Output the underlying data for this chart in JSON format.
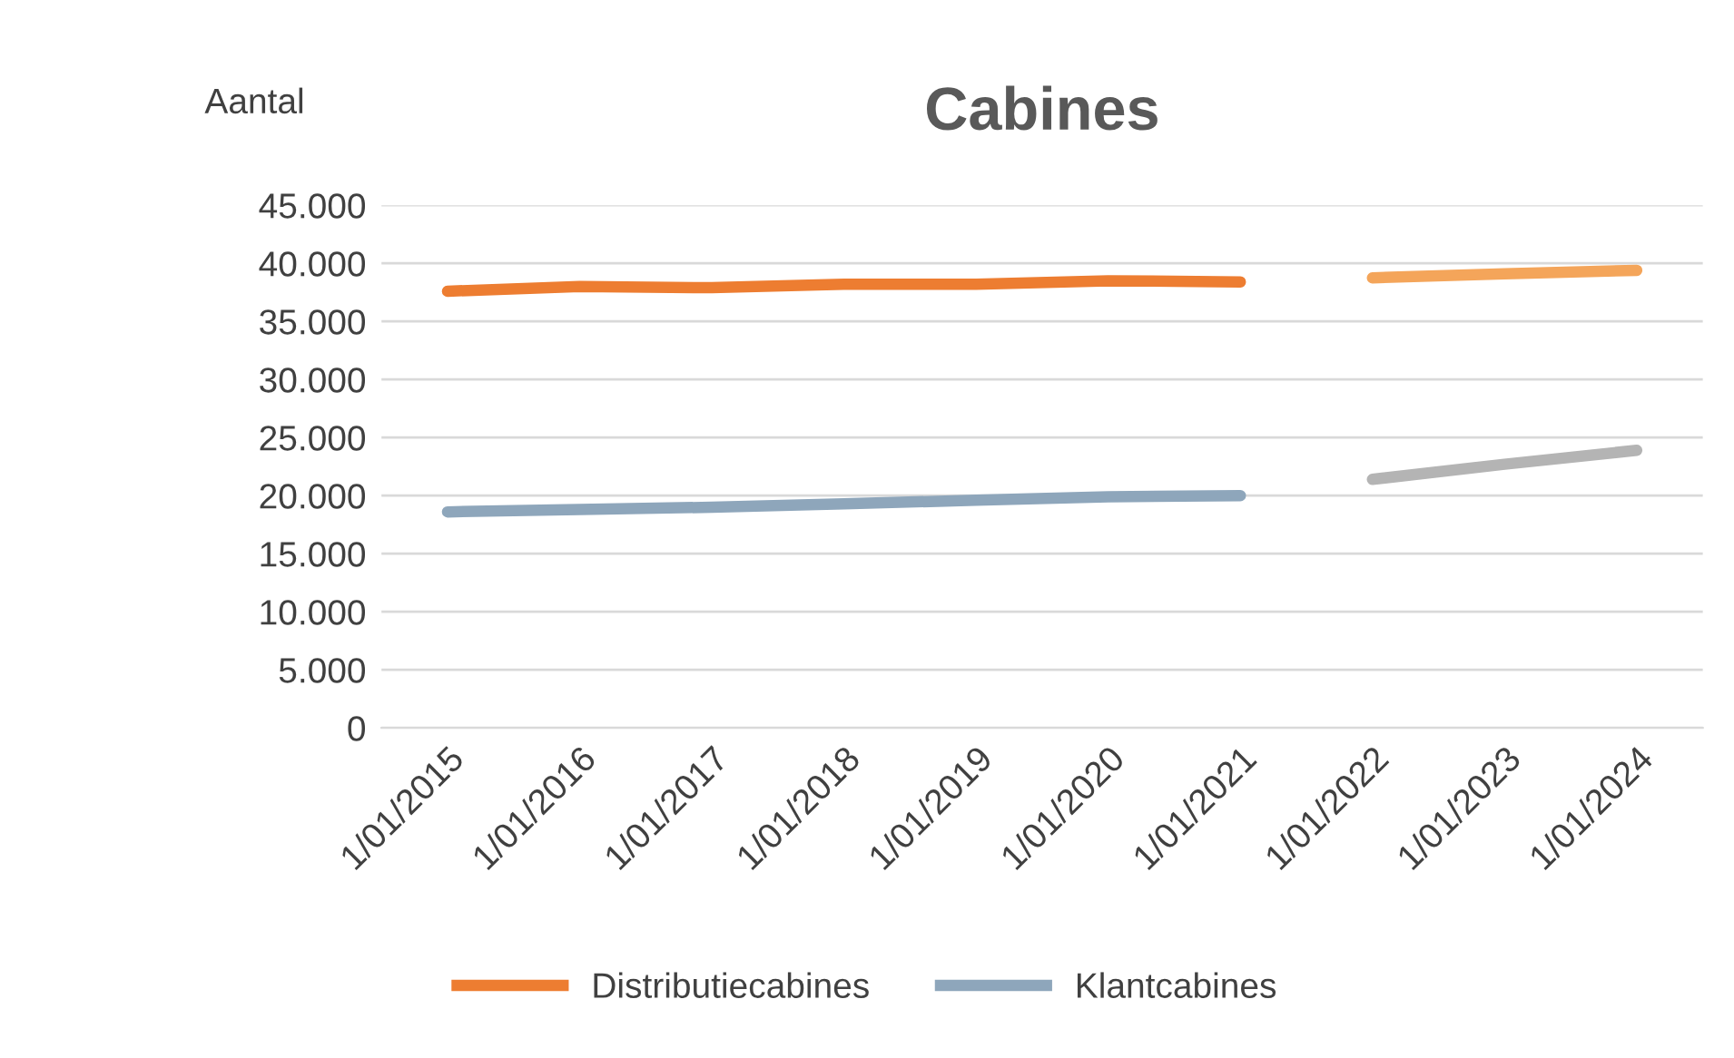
{
  "chart_data": {
    "type": "line",
    "title": "Cabines",
    "ylabel": "Aantal",
    "categories": [
      "1/01/2015",
      "1/01/2016",
      "1/01/2017",
      "1/01/2018",
      "1/01/2019",
      "1/01/2020",
      "1/01/2021",
      "1/01/2022",
      "1/01/2023",
      "1/01/2024"
    ],
    "series": [
      {
        "name": "Distributiecabines",
        "color": "#ed7d31",
        "values": [
          37600,
          38000,
          37900,
          38200,
          38200,
          38500,
          38400,
          null,
          null,
          null
        ]
      },
      {
        "name": "Klantcabines",
        "color": "#8ea6bb",
        "values": [
          18600,
          18800,
          19000,
          19300,
          19600,
          19900,
          20000,
          null,
          null,
          null
        ]
      },
      {
        "color": "#f4a55a",
        "values": [
          null,
          null,
          null,
          null,
          null,
          null,
          null,
          38750,
          39100,
          39400
        ]
      },
      {
        "color": "#b4b4b4",
        "values": [
          null,
          null,
          null,
          null,
          null,
          null,
          null,
          21400,
          22700,
          23900
        ]
      }
    ],
    "ylim": [
      0,
      45000
    ],
    "yticks": [
      {
        "value": 0,
        "label": "0"
      },
      {
        "value": 5000,
        "label": "5.000"
      },
      {
        "value": 10000,
        "label": "10.000"
      },
      {
        "value": 15000,
        "label": "15.000"
      },
      {
        "value": 20000,
        "label": "20.000"
      },
      {
        "value": 25000,
        "label": "25.000"
      },
      {
        "value": 30000,
        "label": "30.000"
      },
      {
        "value": 35000,
        "label": "35.000"
      },
      {
        "value": 40000,
        "label": "40.000"
      },
      {
        "value": 45000,
        "label": "45.000"
      }
    ],
    "grid": "y",
    "legend": "bottom",
    "line_style": "solid"
  }
}
